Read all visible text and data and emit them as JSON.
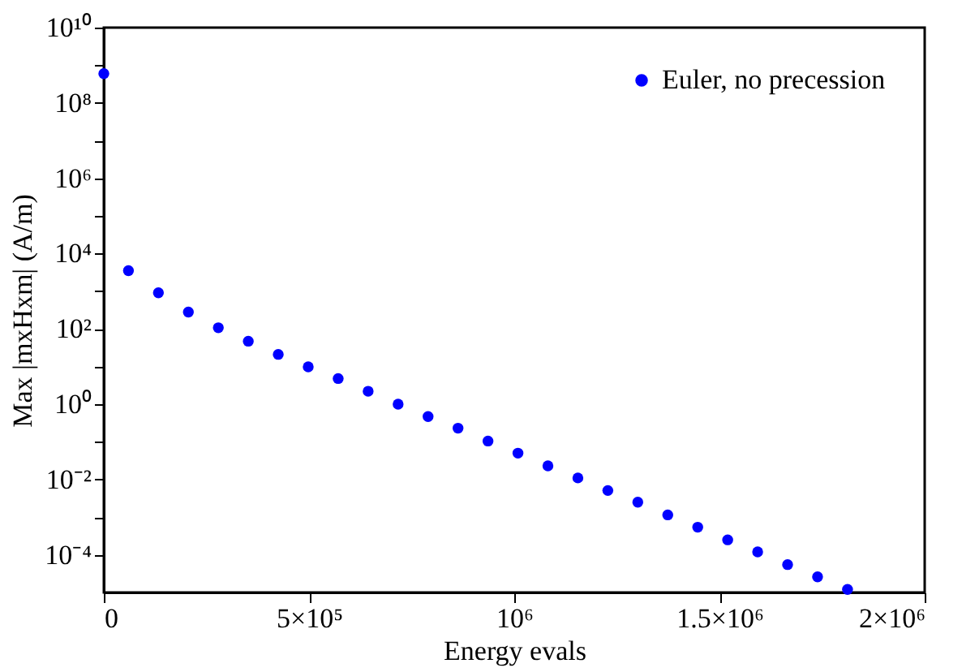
{
  "chart_data": {
    "type": "scatter",
    "xlabel": "Energy evals",
    "ylabel": "Max |mxHxm| (A/m)",
    "x": [
      0,
      60000,
      133000,
      206000,
      279000,
      352000,
      425000,
      498000,
      571000,
      644000,
      717000,
      790000,
      863000,
      936000,
      1009000,
      1082000,
      1155000,
      1228000,
      1301000,
      1374000,
      1447000,
      1520000,
      1593000,
      1666000,
      1739000,
      1812000
    ],
    "series": [
      {
        "name": "Euler, no precession",
        "color": "#0000ff",
        "values": [
          600000000.0,
          3500,
          910,
          280,
          107,
          47,
          21,
          9.8,
          4.8,
          2.2,
          1.0,
          0.47,
          0.23,
          0.105,
          0.05,
          0.023,
          0.011,
          0.0051,
          0.0025,
          0.00115,
          0.00054,
          0.00025,
          0.00012,
          5.5e-05,
          2.6e-05,
          1.2e-05
        ]
      }
    ],
    "log": "y",
    "marker": "circle",
    "legend": "top right",
    "grid": false,
    "xlim": [
      0,
      2000000
    ],
    "xticks": [
      0,
      {
        "value": 500000,
        "label": "5×10⁵"
      },
      {
        "value": 1000000,
        "label": "10⁶"
      },
      {
        "value": 1500000,
        "label": "1.5×10⁶"
      },
      {
        "value": 2000000,
        "label": "2×10⁶"
      }
    ],
    "ylim": [
      1e-05,
      10000000000.0
    ],
    "yticks": [
      {
        "value": 0.0001,
        "label": "10⁻⁴"
      },
      {
        "value": 0.001,
        "label": null
      },
      {
        "value": 0.01,
        "label": "10⁻²"
      },
      {
        "value": 0.1,
        "label": null
      },
      {
        "value": 1,
        "label": "10⁰"
      },
      {
        "value": 10,
        "label": null
      },
      {
        "value": 100,
        "label": "10²"
      },
      {
        "value": 1000,
        "label": null
      },
      {
        "value": 10000,
        "label": "10⁴"
      },
      {
        "value": 100000,
        "label": null
      },
      {
        "value": 1000000.0,
        "label": "10⁶"
      },
      {
        "value": 10000000.0,
        "label": null
      },
      {
        "value": 100000000.0,
        "label": "10⁸"
      },
      {
        "value": 1000000000.0,
        "label": null
      },
      {
        "value": 10000000000.0,
        "label": "10¹⁰"
      }
    ]
  }
}
